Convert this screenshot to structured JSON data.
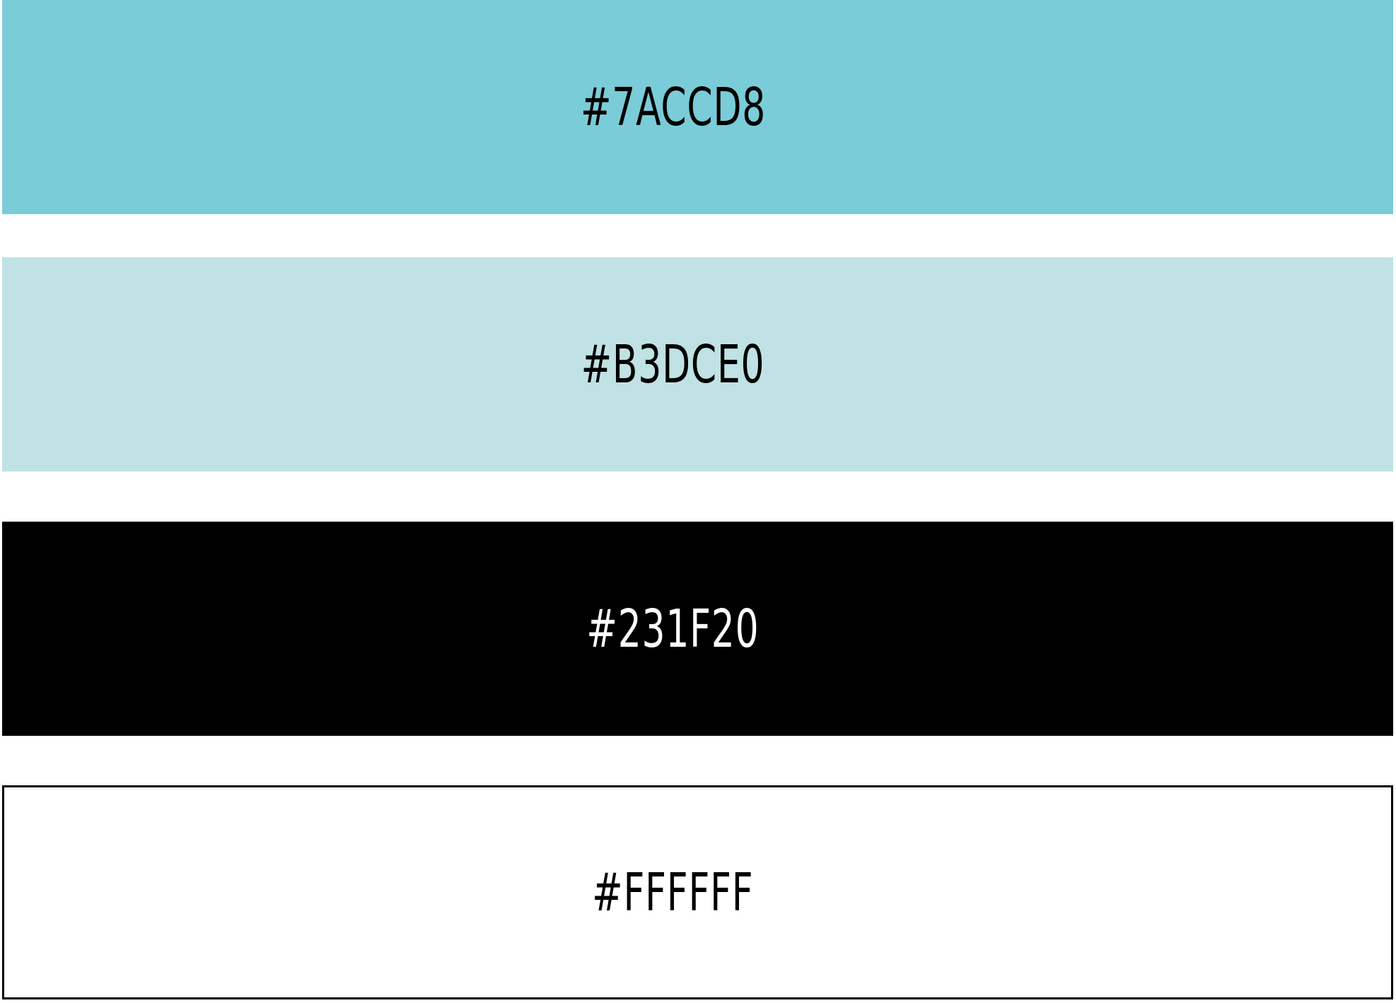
{
  "palette": {
    "swatches": [
      {
        "label": "#7ACCD8",
        "fill": "#7ACCD8",
        "text_color": "#000000"
      },
      {
        "label": "#B3DCE0",
        "fill": "#C0E2E4",
        "text_color": "#000000"
      },
      {
        "label": "#231F20",
        "fill": "#000000",
        "text_color": "#FFFFFF"
      },
      {
        "label": "#FFFFFF",
        "fill": "#FFFFFF",
        "text_color": "#000000"
      }
    ]
  }
}
